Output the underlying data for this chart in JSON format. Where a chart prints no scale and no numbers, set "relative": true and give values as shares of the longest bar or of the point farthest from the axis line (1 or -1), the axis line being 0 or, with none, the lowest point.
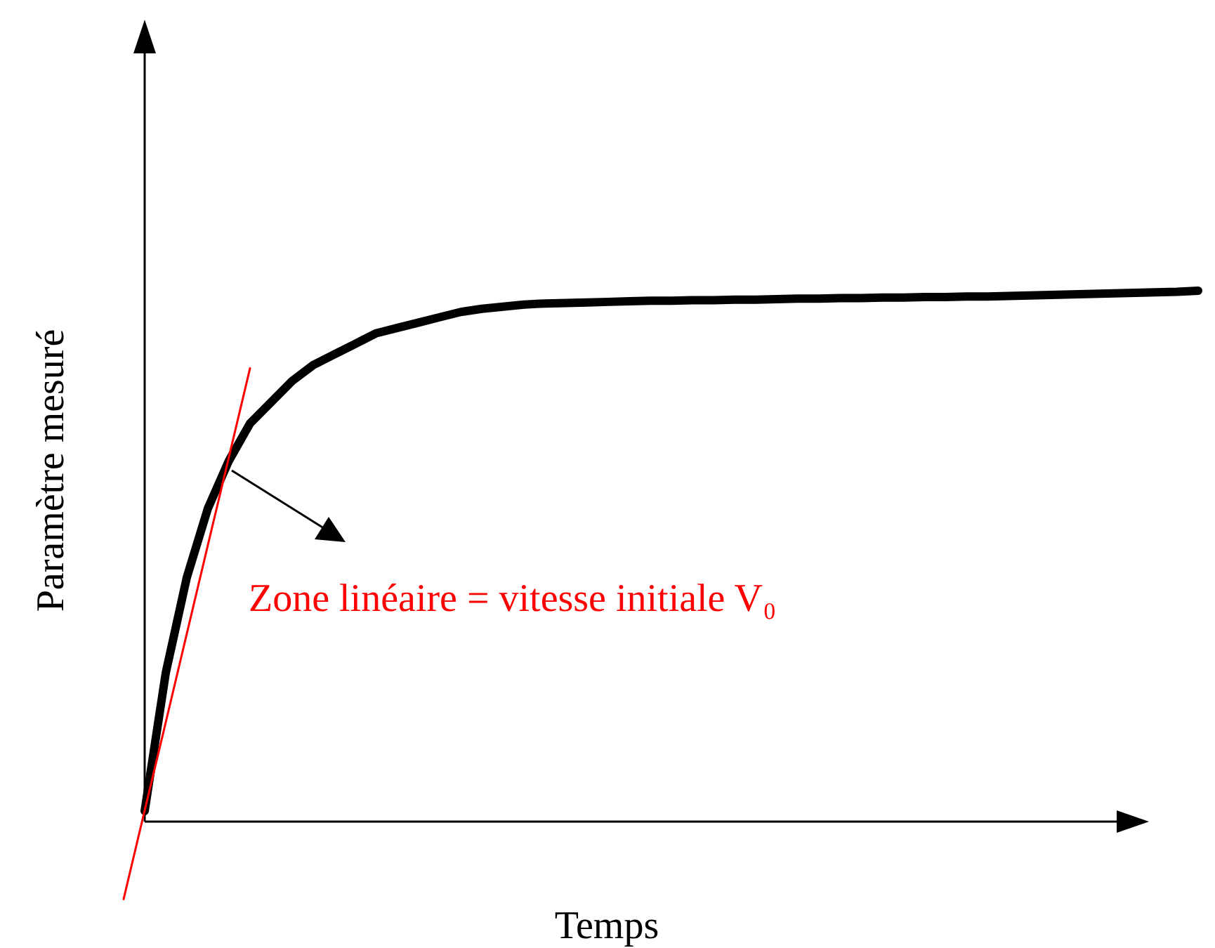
{
  "chart_data": {
    "type": "line",
    "relative": true,
    "xlabel": "Temps",
    "ylabel": "Paramètre mesuré",
    "annotations": [
      "Zone linéaire = vitesse initiale V₀"
    ],
    "categories": [
      null,
      null,
      null,
      null,
      null,
      null,
      null,
      null,
      null,
      null,
      null,
      null,
      null,
      null,
      null,
      null,
      null,
      null,
      null,
      null,
      null,
      null,
      null,
      null,
      null,
      null,
      null,
      null,
      null,
      null,
      null,
      null,
      null,
      null,
      null,
      null,
      null,
      null,
      null,
      null,
      null,
      null,
      null,
      null,
      null,
      null,
      null,
      null,
      null,
      null,
      null,
      null
    ],
    "series": [
      {
        "color": "#000000",
        "values": [
          null,
          0.02,
          0.28,
          0.46,
          0.59,
          0.68,
          0.75,
          0.79,
          0.83,
          0.86,
          0.88,
          0.9,
          0.92,
          0.93,
          0.94,
          0.95,
          0.96,
          0.966,
          0.97,
          0.974,
          0.976,
          0.977,
          0.978,
          0.979,
          0.98,
          0.981,
          0.981,
          0.982,
          0.982,
          0.983,
          0.983,
          0.984,
          0.985,
          0.985,
          0.986,
          0.986,
          0.987,
          0.987,
          0.988,
          0.988,
          0.989,
          0.989,
          0.99,
          0.991,
          0.992,
          0.993,
          0.994,
          0.995,
          0.996,
          0.997,
          0.998,
          1
        ]
      },
      {
        "color": "#ff0000",
        "values": [
          -0.146,
          0.021,
          0.187,
          0.354,
          0.521,
          0.687,
          0.854,
          null,
          null,
          null,
          null,
          null,
          null,
          null,
          null,
          null,
          null,
          null,
          null,
          null,
          null,
          null,
          null,
          null,
          null,
          null,
          null,
          null,
          null,
          null,
          null,
          null,
          null,
          null,
          null,
          null,
          null,
          null,
          null,
          null,
          null,
          null,
          null,
          null,
          null,
          null,
          null,
          null,
          null,
          null,
          null,
          null
        ]
      }
    ]
  }
}
